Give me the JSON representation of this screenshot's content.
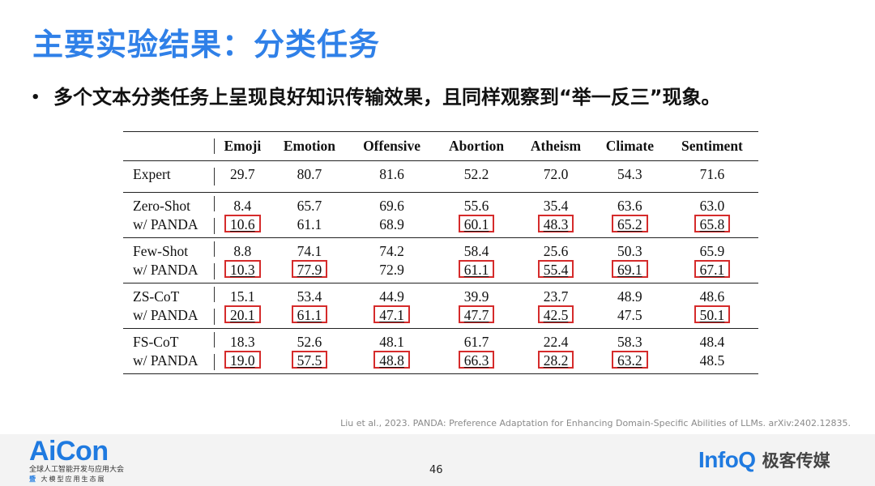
{
  "slide": {
    "title": "主要实验结果：分类任务",
    "bullet": "多个文本分类任务上呈现良好知识传输效果，且同样观察到“举一反三”现象。",
    "citation": "Liu et al., 2023. PANDA: Preference Adaptation for Enhancing Domain-Specific Abilities of LLMs. arXiv:2402.12835.",
    "page_number": "46"
  },
  "table": {
    "columns": [
      "Emoji",
      "Emotion",
      "Offensive",
      "Abortion",
      "Atheism",
      "Climate",
      "Sentiment"
    ],
    "rows": [
      {
        "label": "Expert",
        "values": [
          "29.7",
          "80.7",
          "81.6",
          "52.2",
          "72.0",
          "54.3",
          "71.6"
        ]
      },
      {
        "label": "Zero-Shot",
        "values": [
          "8.4",
          "65.7",
          "69.6",
          "55.6",
          "35.4",
          "63.6",
          "63.0"
        ]
      },
      {
        "label": "w/ PANDA",
        "values": [
          "10.6",
          "61.1",
          "68.9",
          "60.1",
          "48.3",
          "65.2",
          "65.8"
        ]
      },
      {
        "label": "Few-Shot",
        "values": [
          "8.8",
          "74.1",
          "74.2",
          "58.4",
          "25.6",
          "50.3",
          "65.9"
        ]
      },
      {
        "label": "w/ PANDA",
        "values": [
          "10.3",
          "77.9",
          "72.9",
          "61.1",
          "55.4",
          "69.1",
          "67.1"
        ]
      },
      {
        "label": "ZS-CoT",
        "values": [
          "15.1",
          "53.4",
          "44.9",
          "39.9",
          "23.7",
          "48.9",
          "48.6"
        ]
      },
      {
        "label": "w/ PANDA",
        "values": [
          "20.1",
          "61.1",
          "47.1",
          "47.7",
          "42.5",
          "47.5",
          "50.1"
        ]
      },
      {
        "label": "FS-CoT",
        "values": [
          "18.3",
          "52.6",
          "48.1",
          "61.7",
          "22.4",
          "58.3",
          "48.4"
        ]
      },
      {
        "label": "w/ PANDA",
        "values": [
          "19.0",
          "57.5",
          "48.8",
          "66.3",
          "28.2",
          "63.2",
          "48.5"
        ]
      }
    ]
  },
  "logos": {
    "aicon": {
      "wordmark": "AiCon",
      "line1": "全球人工智能开发与应用大会",
      "line2_prefix": "暨",
      "line2": "大模型应用生态展"
    },
    "infoq": {
      "wordmark": "InfoQ",
      "cn": "极客传媒"
    }
  },
  "colors": {
    "title": "#2f80e8",
    "highlight_box": "#d52b2b",
    "brand": "#1f7ae0"
  }
}
